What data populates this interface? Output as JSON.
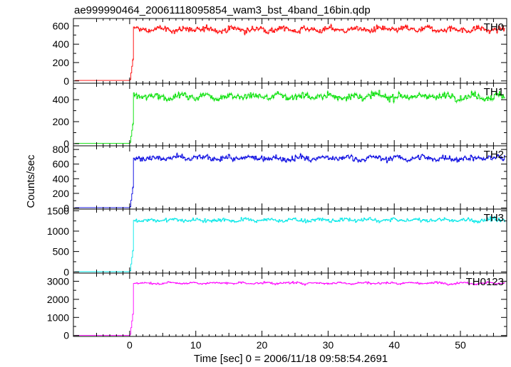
{
  "chart_data": {
    "type": "line",
    "title": "ae999990464_20061118095854_wam3_bst_4band_16bin.qdp",
    "xlabel": "Time [sec] 0 = 2006/11/18 09:58:54.2691",
    "ylabel": "Counts/sec",
    "xlim": [
      -8.5,
      57
    ],
    "xticks": [
      0,
      10,
      20,
      30,
      40,
      50
    ],
    "onset_time": 0.4,
    "grid": false,
    "panels": [
      {
        "name": "TH0",
        "color": "#ff0000",
        "ylim": [
          -25,
          680
        ],
        "yticks": [
          0,
          200,
          400,
          600
        ],
        "background": 5,
        "level": 560,
        "noise": 40
      },
      {
        "name": "TH1",
        "color": "#00e000",
        "ylim": [
          -20,
          550
        ],
        "yticks": [
          0,
          200,
          400
        ],
        "background": 3,
        "level": 430,
        "noise": 40
      },
      {
        "name": "TH2",
        "color": "#0000e0",
        "ylim": [
          -15,
          850
        ],
        "yticks": [
          0,
          200,
          400,
          600,
          800
        ],
        "background": 5,
        "level": 680,
        "noise": 50
      },
      {
        "name": "TH3",
        "color": "#00e8e8",
        "ylim": [
          -30,
          1540
        ],
        "yticks": [
          0,
          500,
          1000,
          1500
        ],
        "background": 5,
        "level": 1270,
        "noise": 60
      },
      {
        "name": "TH0123",
        "color": "#ff00ff",
        "ylim": [
          -50,
          3450
        ],
        "yticks": [
          0,
          1000,
          2000,
          3000
        ],
        "background": 5,
        "level": 2900,
        "noise": 80
      }
    ]
  }
}
